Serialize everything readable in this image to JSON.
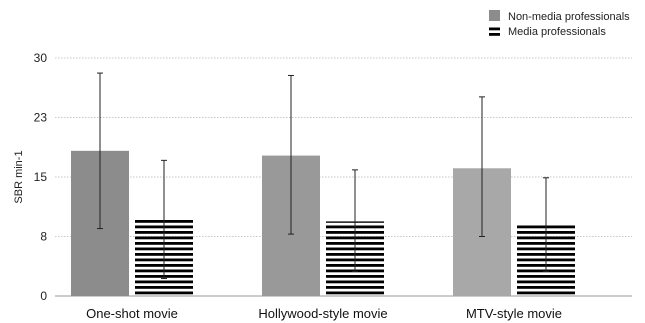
{
  "chart_data": {
    "type": "bar",
    "title": "",
    "xlabel": "",
    "ylabel": "SBR min-1",
    "ylim": [
      0,
      30
    ],
    "yticks": [
      {
        "value": 0,
        "label": "0"
      },
      {
        "value": 7.5,
        "label": "8"
      },
      {
        "value": 15,
        "label": "15"
      },
      {
        "value": 22.5,
        "label": "23"
      },
      {
        "value": 30,
        "label": "30"
      }
    ],
    "grid": true,
    "legend": "top-right",
    "categories": [
      "One-shot movie",
      "Hollywood-style movie",
      "MTV-style movie"
    ],
    "series": [
      {
        "name": "Non-media professionals",
        "pattern": "solid",
        "values": [
          18.3,
          17.7,
          16.1
        ],
        "err_low": [
          8.5,
          7.8,
          7.5
        ],
        "err_high": [
          28.1,
          27.8,
          25.1
        ],
        "colors": [
          "#8c8c8c",
          "#999999",
          "#a8a8a8"
        ]
      },
      {
        "name": "Media professionals",
        "pattern": "horizontal-stripes",
        "values": [
          9.7,
          9.4,
          9.1
        ],
        "err_low": [
          2.2,
          3.1,
          3.1
        ],
        "err_high": [
          17.1,
          15.9,
          14.9
        ],
        "colors": [
          "#000000",
          "#000000",
          "#000000"
        ]
      }
    ]
  }
}
